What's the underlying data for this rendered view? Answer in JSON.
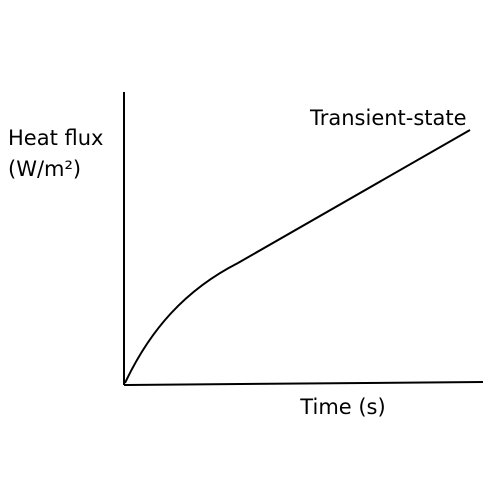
{
  "y_axis_label": [
    "Heat flux",
    "(W/m²)"
  ],
  "x_axis_label": "Time (s)",
  "curve_label": "Transient-state"
}
